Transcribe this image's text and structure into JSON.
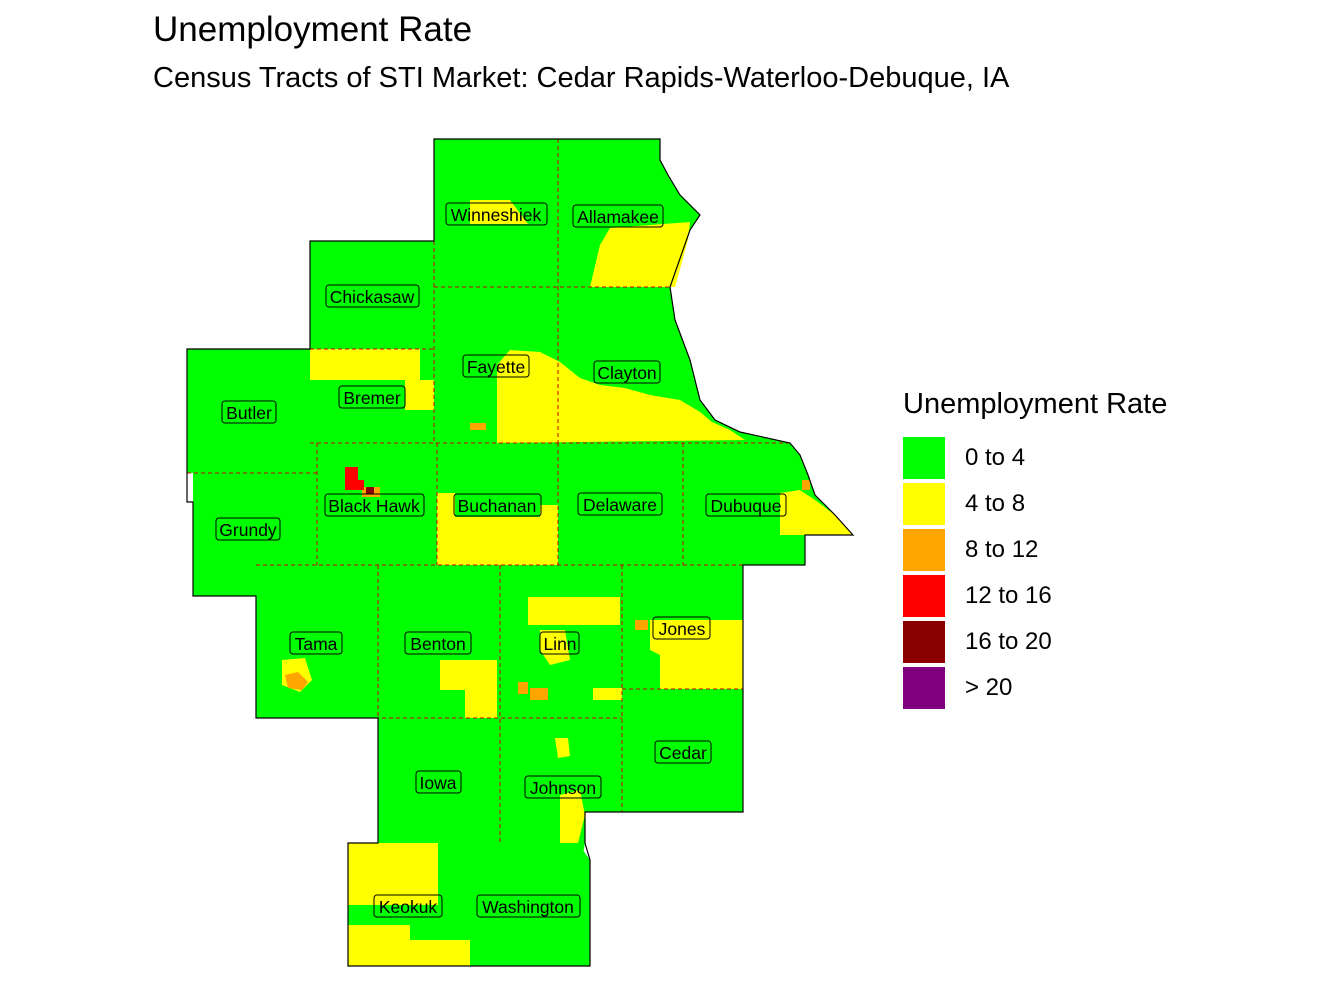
{
  "title": "Unemployment Rate",
  "subtitle": "Census Tracts of STI Market: Cedar Rapids-Waterloo-Debuque, IA",
  "legend": {
    "title": "Unemployment Rate",
    "items": [
      {
        "label": "0 to 4",
        "color": "#00ff00"
      },
      {
        "label": "4 to 8",
        "color": "#ffff00"
      },
      {
        "label": "8 to 12",
        "color": "#ffa500"
      },
      {
        "label": "12 to 16",
        "color": "#ff0000"
      },
      {
        "label": "16 to 20",
        "color": "#8b0000"
      },
      {
        "label": "> 20",
        "color": "#800080"
      }
    ]
  },
  "counties": [
    "Winneshiek",
    "Allamakee",
    "Chickasaw",
    "Fayette",
    "Clayton",
    "Bremer",
    "Butler",
    "Black Hawk",
    "Grundy",
    "Buchanan",
    "Delaware",
    "Dubuque",
    "Tama",
    "Benton",
    "Linn",
    "Jones",
    "Iowa",
    "Johnson",
    "Cedar",
    "Keokuk",
    "Washington"
  ]
}
